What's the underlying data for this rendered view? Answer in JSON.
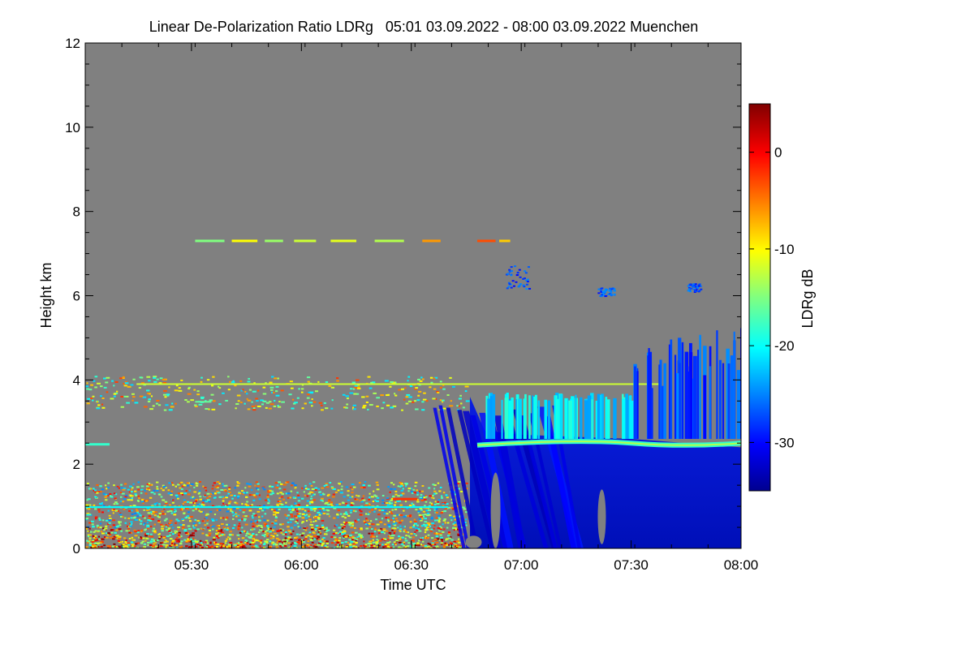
{
  "chart_data": {
    "type": "heatmap",
    "title": "Linear De-Polarization Ratio LDRg   05:01 03.09.2022 - 08:00 03.09.2022 Muenchen",
    "xlabel": "Time UTC",
    "ylabel": "Height km",
    "xlim": [
      "05:01",
      "08:00"
    ],
    "ylim": [
      0,
      12
    ],
    "x_ticks": [
      "05:30",
      "06:00",
      "06:30",
      "07:00",
      "07:30",
      "08:00"
    ],
    "y_ticks": [
      "0",
      "2",
      "4",
      "6",
      "8",
      "10",
      "12"
    ],
    "colorbar": {
      "label": "LDRg dB",
      "range": [
        -35,
        5
      ],
      "ticks": [
        "0",
        "-10",
        "-20",
        "-30"
      ],
      "colormap": "jet"
    },
    "background_color": "#808080",
    "features": [
      {
        "name": "cloud base layer",
        "start": "06:46",
        "end": "08:00",
        "height_km": 2.45,
        "ldr_db": -20
      },
      {
        "name": "cloud body",
        "start": "06:46",
        "end": "08:00",
        "height_km": [
          0,
          2.4
        ],
        "ldr_db": -34
      },
      {
        "name": "mid-level cloud",
        "start": "06:57",
        "end": "07:05",
        "height_km": [
          6.2,
          6.8
        ],
        "ldr_db": -28
      },
      {
        "name": "aerosol layer",
        "start": "05:31",
        "end": "07:00",
        "height_km": 7.3,
        "ldr_db": -12
      },
      {
        "name": "residual layer top",
        "start": "05:01",
        "end": "07:40",
        "height_km": 3.9,
        "ldr_db": -15
      }
    ]
  }
}
